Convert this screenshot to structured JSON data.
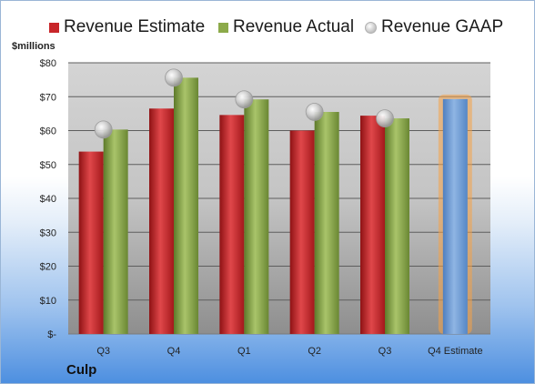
{
  "legend": {
    "estimate": "Revenue Estimate",
    "actual": "Revenue Actual",
    "gaap": "Revenue GAAP"
  },
  "unit_label": "$millions",
  "company": "Culp",
  "colors": {
    "estimate": "#c8262a",
    "actual": "#8caa4a",
    "forecast": "#6f9bd2",
    "forecast_glow": "#f5a347",
    "gaap_marker": "#bdbdbd"
  },
  "chart_data": {
    "type": "bar",
    "categories": [
      "Q3",
      "Q4",
      "Q1",
      "Q2",
      "Q3",
      "Q4 Estimate"
    ],
    "series": [
      {
        "name": "Revenue Estimate",
        "values": [
          53.8,
          66.5,
          64.6,
          60.0,
          64.4,
          null
        ]
      },
      {
        "name": "Revenue Actual",
        "values": [
          60.3,
          75.6,
          69.2,
          65.5,
          63.6,
          69.3
        ]
      },
      {
        "name": "Revenue GAAP",
        "values": [
          60.3,
          75.6,
          69.2,
          65.5,
          63.6,
          null
        ]
      }
    ],
    "ylabel": "$millions",
    "ylim": [
      0,
      80
    ],
    "y_ticks": [
      {
        "value": 0,
        "label": "$-"
      },
      {
        "value": 10,
        "label": "$10"
      },
      {
        "value": 20,
        "label": "$20"
      },
      {
        "value": 30,
        "label": "$30"
      },
      {
        "value": 40,
        "label": "$40"
      },
      {
        "value": 50,
        "label": "$50"
      },
      {
        "value": 60,
        "label": "$60"
      },
      {
        "value": 70,
        "label": "$70"
      },
      {
        "value": 80,
        "label": "$80"
      }
    ],
    "grid": true,
    "legend_position": "top"
  }
}
